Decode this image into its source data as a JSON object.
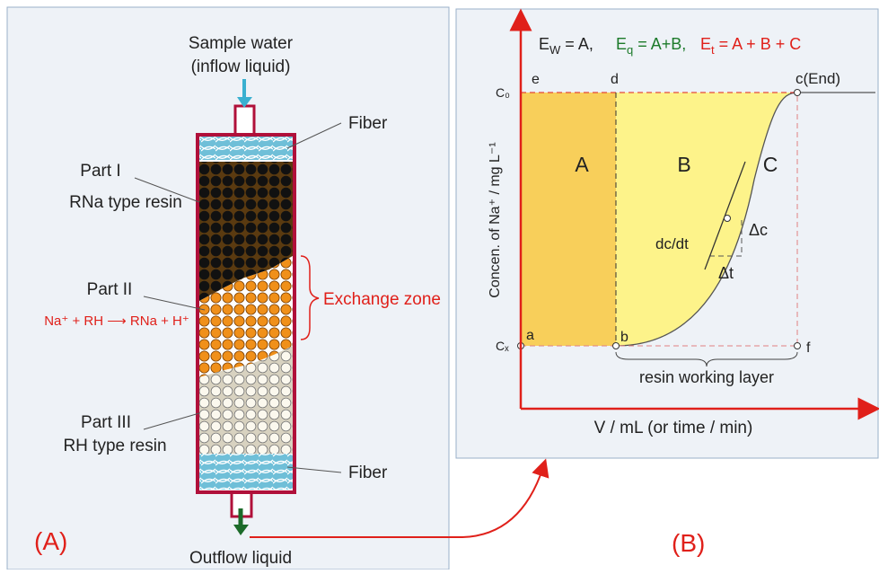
{
  "panel_a": {
    "inflow": [
      "Sample water",
      "(inflow liquid)"
    ],
    "fiber_top": "Fiber",
    "part1": "Part I",
    "part1_resin": "RNa type resin",
    "part2": "Part II",
    "reaction": "Na⁺ + RH ⟶ RNa + H⁺",
    "exchange_zone": "Exchange zone",
    "part3": "Part III",
    "part3_resin": "RH type resin",
    "fiber_bottom": "Fiber",
    "label": "(A)",
    "outflow": "Outflow liquid"
  },
  "panel_b": {
    "equations": [
      {
        "base": "E",
        "sub": "W",
        "rest": " = A,"
      },
      {
        "base": "E",
        "sub": "q",
        "rest": " = A+B,"
      },
      {
        "base": "E",
        "sub": "t",
        "rest": " = A + B + C"
      }
    ],
    "points": {
      "c0": "C₀",
      "e": "e",
      "d": "d",
      "c_end": "c(End)",
      "cx": "Cₓ",
      "a": "a",
      "b": "b",
      "f": "f"
    },
    "regions": [
      "A",
      "B",
      "C"
    ],
    "slope": "dc/dt",
    "delta_c": "Δc",
    "delta_t": "Δt",
    "working_layer": "resin working layer",
    "y_label": "Concen. of Na⁺ / mg L⁻¹",
    "x_label": "V / mL (or time / min)",
    "label": "(B)"
  }
}
